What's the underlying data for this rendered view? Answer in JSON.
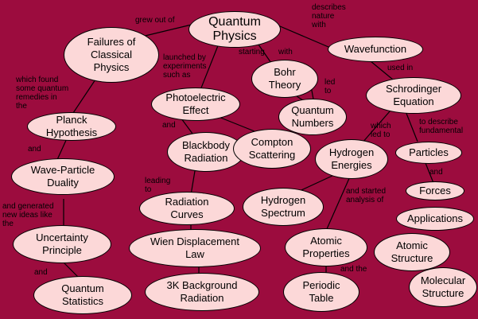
{
  "colors": {
    "background": "#9c0c3e",
    "node_fill": "#fcd8d8",
    "line": "#000000"
  },
  "nodes": {
    "quantum_physics": "Quantum\nPhysics",
    "failures": "Failures of\nClassical\nPhysics",
    "wavefunction": "Wavefunction",
    "bohr": "Bohr\nTheory",
    "schrodinger": "Schrodinger\nEquation",
    "photoelectric": "Photoelectric\nEffect",
    "quantum_numbers": "Quantum\nNumbers",
    "planck": "Planck\nHypothesis",
    "blackbody": "Blackbody\nRadiation",
    "compton": "Compton\nScattering",
    "hydrogen_energies": "Hydrogen\nEnergies",
    "particles": "Particles",
    "wave_particle": "Wave-Particle\nDuality",
    "forces": "Forces",
    "radiation_curves": "Radiation\nCurves",
    "hydrogen_spectrum": "Hydrogen\nSpectrum",
    "applications": "Applications",
    "wien": "Wien Displacement\nLaw",
    "uncertainty": "Uncertainty\nPrinciple",
    "atomic_properties": "Atomic\nProperties",
    "atomic_structure": "Atomic\nStructure",
    "quantum_statistics": "Quantum\nStatistics",
    "background_3k": "3K Background\nRadiation",
    "periodic_table": "Periodic\nTable",
    "molecular_structure": "Molecular\nStructure"
  },
  "labels": {
    "grew_out_of": "grew out of",
    "describes": "describes\nnature\nwith",
    "launched": "launched by\nexperiments\nsuch as",
    "starting": "starting",
    "with": "with",
    "led_to": "led\nto",
    "used_in": "used in",
    "which_found": "which found\nsome quantum\nremedies in\nthe",
    "which_led_to": "which\nled to",
    "to_describe": "to describe\nfundamental",
    "and_blackbody": "and",
    "and_wave": "and",
    "and_forces": "and",
    "leading_to": "leading\nto",
    "and_started": "and started\nanalysis of",
    "and_generated": "and generated\nnew ideas like\nthe",
    "and_stats": "and",
    "and_the": "and the"
  }
}
